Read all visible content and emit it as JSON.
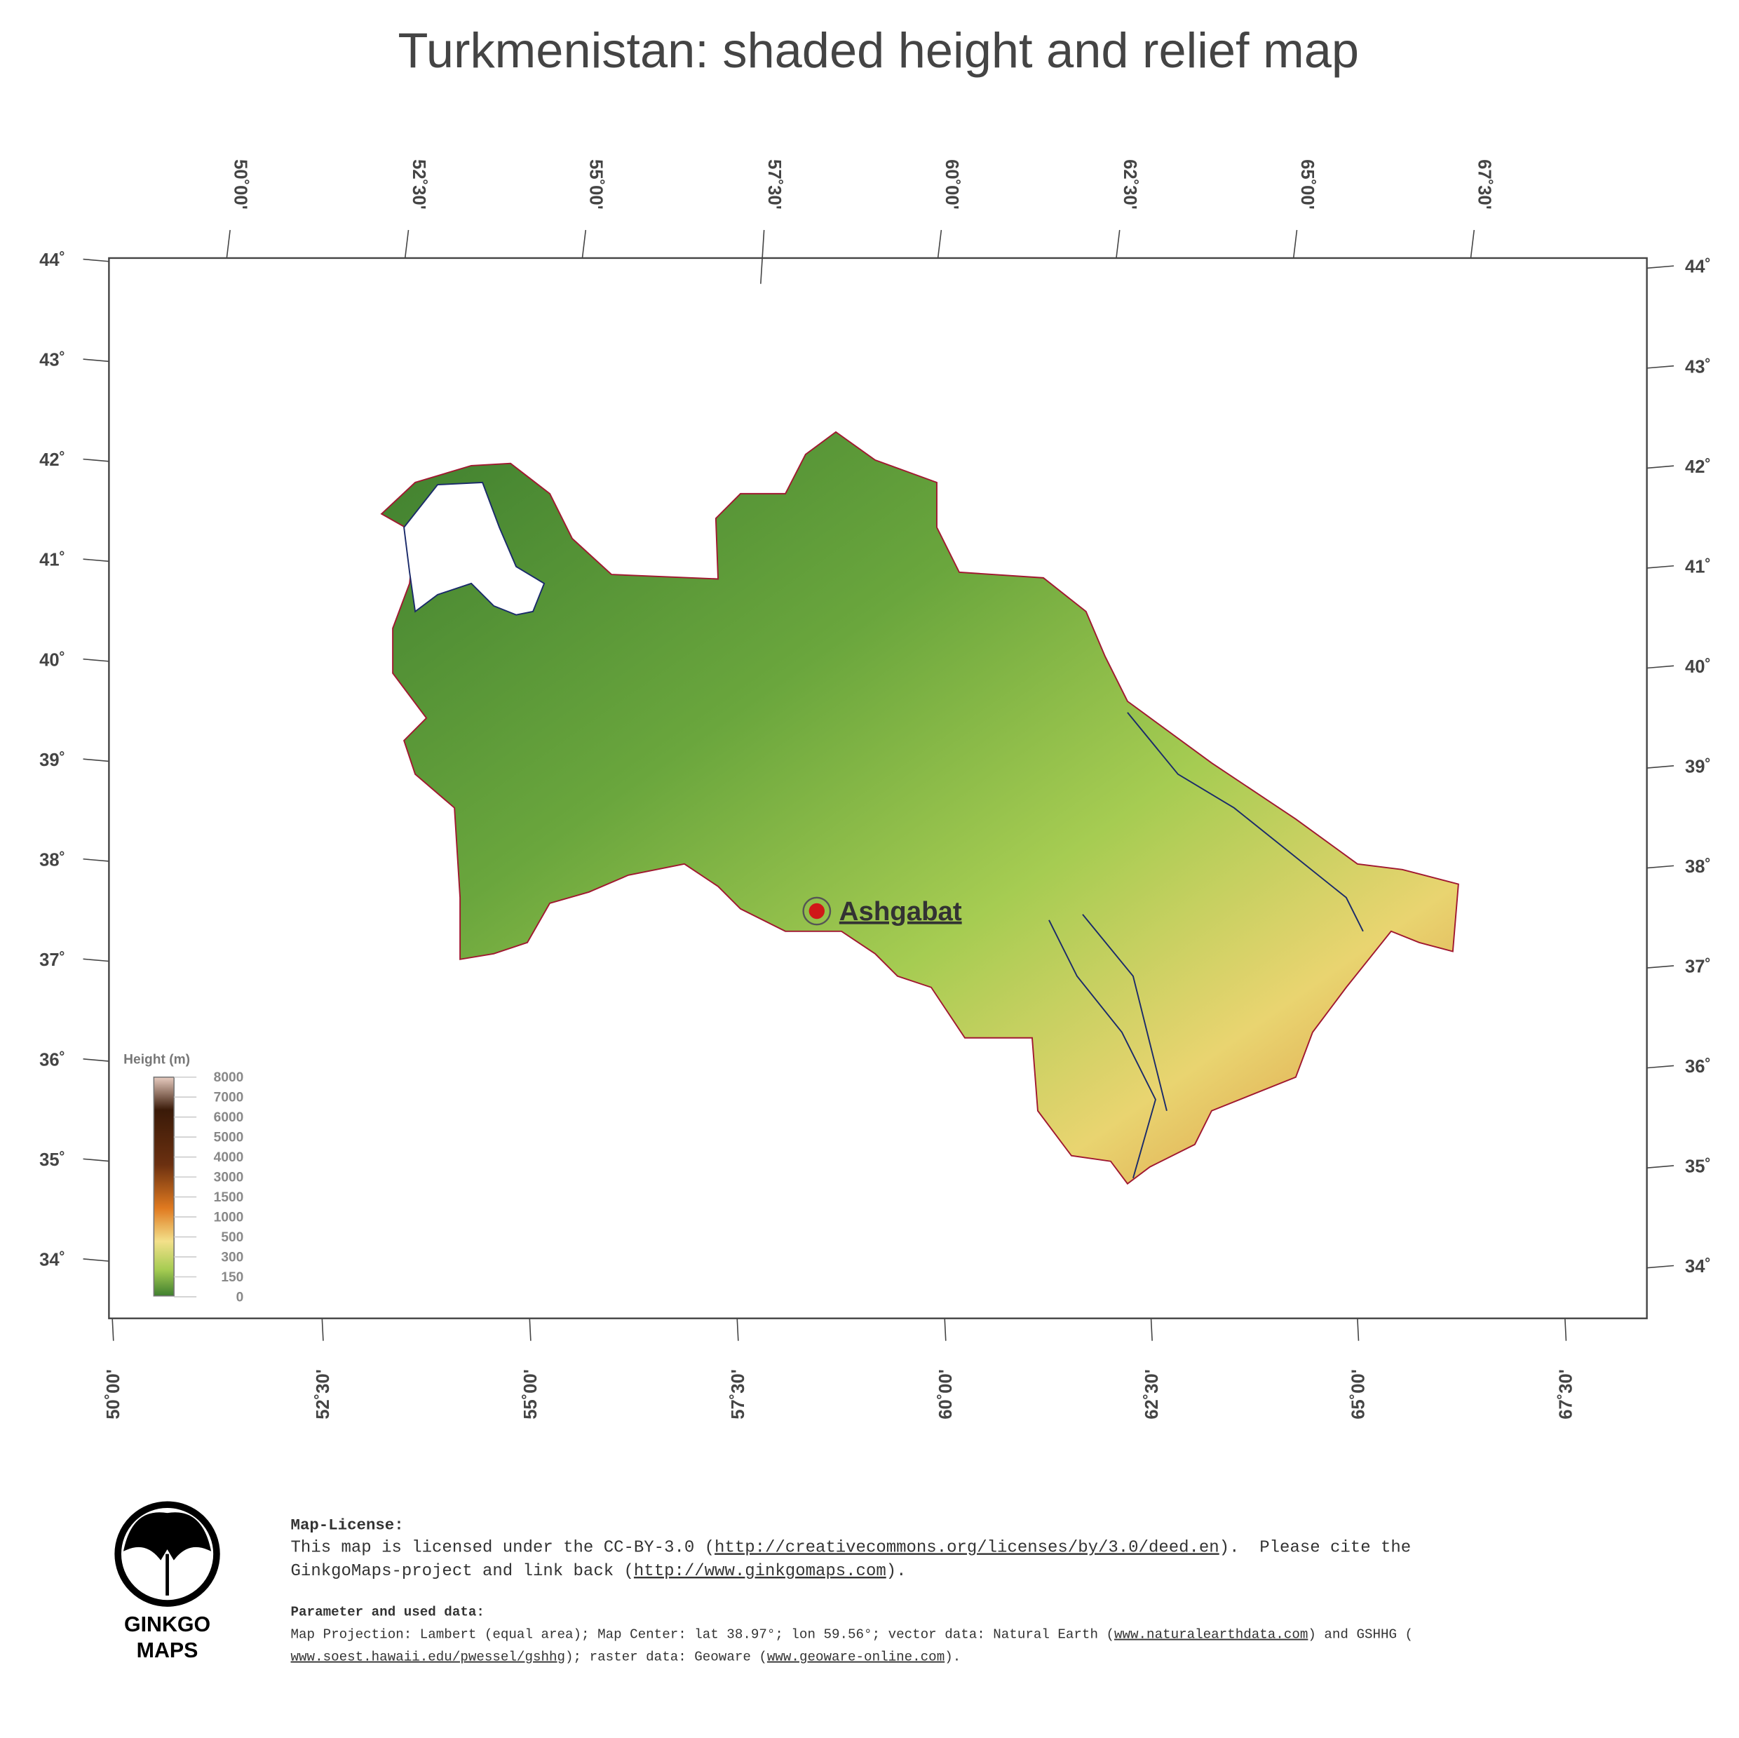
{
  "title": "Turkmenistan: shaded height and relief map",
  "lon_labels": [
    "50˚00'",
    "52˚30'",
    "55˚00'",
    "57˚30'",
    "60˚00'",
    "62˚30'",
    "65˚00'",
    "67˚30'"
  ],
  "lat_labels": [
    "44˚",
    "43˚",
    "42˚",
    "41˚",
    "40˚",
    "39˚",
    "38˚",
    "37˚",
    "36˚",
    "35˚",
    "34˚"
  ],
  "legend": {
    "title": "Height (m)",
    "labels": [
      "8000",
      "7000",
      "6000",
      "5000",
      "4000",
      "3000",
      "1500",
      "1000",
      "500",
      "300",
      "150",
      "0"
    ]
  },
  "city": "Ashgabat",
  "logo": [
    "GINKGO",
    "MAPS"
  ],
  "license": {
    "heading": "Map-License:",
    "lines": [
      [
        "This map is licensed under the CC-BY-3.0 (",
        {
          "link": "http://creativecommons.org/licenses/by/3.0/deed.en"
        },
        ").  Please cite the"
      ],
      [
        "GinkgoMaps-project and link back (",
        {
          "link": "http://www.ginkgomaps.com"
        },
        ")."
      ]
    ]
  },
  "parameters": {
    "heading": "Parameter and used data:",
    "lines": [
      [
        "Map Projection: Lambert (equal area); Map Center: lat 38.97°; lon 59.56°; vector data: Natural Earth (",
        {
          "link": "www.naturalearthdata.com"
        },
        ") and GSHHG ("
      ],
      [
        {
          "link": "www.soest.hawaii.edu/pwessel/gshhg"
        },
        "); raster data: Geoware (",
        {
          "link": "www.geoware-online.com"
        },
        ")."
      ]
    ]
  }
}
